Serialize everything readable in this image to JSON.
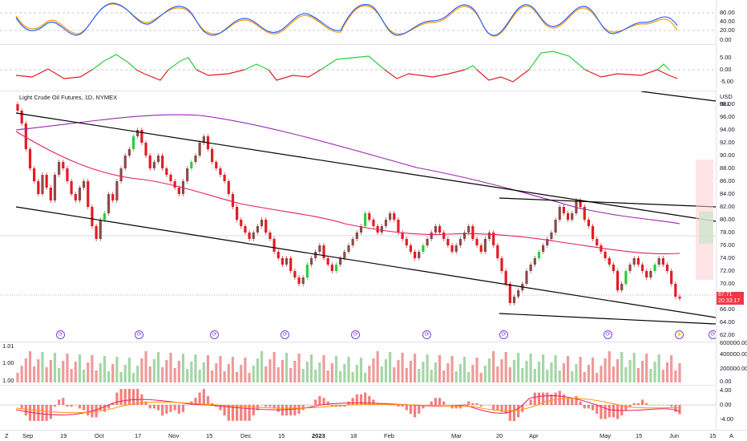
{
  "chart_header": {
    "title": "Light Crude Oil Futures, 1D, NYMEX",
    "currency": "USD",
    "unit": "BLL"
  },
  "price_tag": {
    "price": "67.71",
    "countdown": "20:33:17"
  },
  "colors": {
    "up": "#089981",
    "down": "#f23645",
    "green_candle": "#2ecc40",
    "red_candle": "#e31b23",
    "ma_purple": "#9c27b0",
    "ma_red": "#e91e63",
    "stoch_k": "#2962ff",
    "stoch_d": "#ff9800"
  },
  "axes": {
    "price_ticks": [
      "98.00",
      "96.00",
      "94.00",
      "92.00",
      "90.00",
      "88.00",
      "86.00",
      "84.00",
      "82.00",
      "80.00",
      "78.00",
      "76.00",
      "74.00",
      "72.00",
      "70.00",
      "66.00",
      "64.00",
      "62.00"
    ],
    "stoch_ticks": [
      "80.00",
      "40.00",
      "20.00",
      "0.00"
    ],
    "mom_ticks": [
      "5.00",
      "0.00",
      "-5.00"
    ],
    "vol_ticks": [
      "600000.00",
      "400000.00",
      "200000.00",
      "0.00"
    ],
    "vol_left_ticks": [
      "1.01",
      "1.00",
      "1.00"
    ],
    "macd_ticks": [
      "4.00",
      "0.00",
      "-4.00"
    ],
    "x_ticks": [
      "Sep",
      "19",
      "Oct",
      "17",
      "Nov",
      "15",
      "Dec",
      "15",
      "2023",
      "18",
      "Feb",
      "Mar",
      "20",
      "Apr",
      "May",
      "15",
      "Jun",
      "15"
    ]
  },
  "bottom_bar": {
    "left_icon": "Z",
    "right_icon": "A"
  },
  "chart_data": {
    "type": "candlestick",
    "title": "Light Crude Oil Futures, 1D, NYMEX",
    "ylim": [
      61,
      100
    ],
    "last_price": 67.71,
    "close_series": [
      97,
      95,
      91,
      88,
      86,
      84,
      87,
      85,
      83,
      87,
      89,
      88,
      86,
      84,
      83,
      85,
      86,
      82,
      79,
      77,
      80,
      81,
      84,
      83,
      86,
      88,
      90,
      91,
      93,
      94,
      92,
      90,
      88,
      89,
      90,
      88,
      87,
      86,
      85,
      84,
      86,
      88,
      89,
      90,
      92,
      93,
      91,
      89,
      88,
      87,
      86,
      84,
      82,
      80,
      79,
      78,
      77,
      78,
      79,
      80,
      78,
      77,
      75,
      74,
      73,
      74,
      72,
      71,
      70,
      71,
      73,
      74,
      75,
      76,
      74,
      73,
      72,
      73,
      74,
      75,
      76,
      77,
      78,
      79,
      81,
      80,
      79,
      78,
      79,
      80,
      81,
      80,
      78,
      77,
      76,
      75,
      74,
      75,
      76,
      77,
      78,
      79,
      78,
      77,
      76,
      75,
      76,
      77,
      78,
      79,
      77,
      76,
      75,
      77,
      78,
      76,
      74,
      72,
      70,
      67,
      68,
      69,
      70,
      72,
      73,
      74,
      75,
      76,
      77,
      78,
      80,
      82,
      81,
      80,
      81,
      83,
      82,
      80,
      79,
      77,
      76,
      75,
      74,
      73,
      72,
      69,
      70,
      72,
      73,
      74,
      73,
      72,
      71,
      72,
      73,
      74,
      73,
      72,
      70,
      68,
      67.71
    ]
  }
}
